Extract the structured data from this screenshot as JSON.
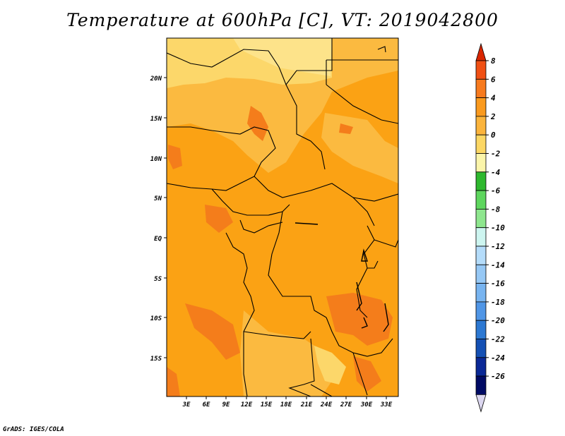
{
  "title": "Temperature at 600hPa [C], VT: 2019042800",
  "credit": "GrADS: IGES/COLA",
  "map": {
    "lat_labels": [
      "20N",
      "15N",
      "10N",
      "5N",
      "EQ",
      "5S",
      "10S",
      "15S"
    ],
    "lon_labels": [
      "3E",
      "6E",
      "9E",
      "12E",
      "15E",
      "18E",
      "21E",
      "24E",
      "27E",
      "30E",
      "33E"
    ]
  },
  "colorbar": {
    "labels": [
      "8",
      "6",
      "4",
      "2",
      "0",
      "-2",
      "-4",
      "-6",
      "-8",
      "-10",
      "-12",
      "-14",
      "-16",
      "-18",
      "-20",
      "-22",
      "-24",
      "-26"
    ],
    "colors": [
      "#d92600",
      "#f05014",
      "#f77a1e",
      "#fa9a1e",
      "#fbb43c",
      "#fcd764",
      "#fbf5aa",
      "#2eb82e",
      "#5ed65e",
      "#8ee68e",
      "#cdf5f0",
      "#b4dcfa",
      "#96c8f5",
      "#78b4f0",
      "#5096e6",
      "#2c78d2",
      "#1450b4",
      "#0a2896",
      "#000a64",
      "#dcd7f0"
    ]
  },
  "colors": {
    "warm_2_4": "#fba214",
    "warm_4_6": "#f47d1b",
    "mild_0_2": "#fbba40",
    "cool_m2_0": "#fcd76a",
    "border": "#000000"
  }
}
